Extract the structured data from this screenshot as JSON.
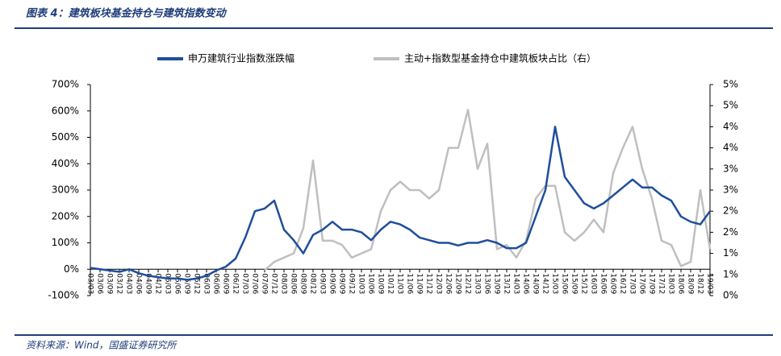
{
  "chart_data": {
    "type": "line",
    "title": "图表 4：建筑板块基金持仓与建筑指数变动",
    "source": "资料来源：Wind，国盛证券研究所",
    "categories": [
      "03/03",
      "03/06",
      "03/09",
      "03/12",
      "04/03",
      "04/06",
      "04/09",
      "04/12",
      "05/03",
      "05/06",
      "05/09",
      "05/12",
      "06/03",
      "06/06",
      "06/09",
      "06/12",
      "07/03",
      "07/06",
      "07/09",
      "07/12",
      "08/03",
      "08/06",
      "08/09",
      "08/12",
      "09/03",
      "09/06",
      "09/09",
      "09/12",
      "10/03",
      "10/06",
      "10/09",
      "10/12",
      "11/03",
      "11/06",
      "11/09",
      "11/12",
      "12/03",
      "12/06",
      "12/09",
      "12/12",
      "13/03",
      "13/06",
      "13/09",
      "13/12",
      "14/03",
      "14/06",
      "14/09",
      "14/12",
      "15/03",
      "15/06",
      "15/09",
      "15/12",
      "16/03",
      "16/06",
      "16/09",
      "16/12",
      "17/03",
      "17/06",
      "17/09",
      "17/12",
      "18/03",
      "18/06",
      "18/09",
      "18/12",
      "19/03"
    ],
    "series": [
      {
        "name": "申万建筑行业指数涨跌幅",
        "color": "#1f4e9c",
        "values": [
          5,
          0,
          -5,
          -10,
          0,
          -15,
          -25,
          -30,
          -35,
          -35,
          -40,
          -35,
          -25,
          -5,
          10,
          40,
          120,
          220,
          230,
          260,
          150,
          110,
          60,
          130,
          150,
          180,
          150,
          150,
          140,
          110,
          150,
          180,
          170,
          150,
          120,
          110,
          100,
          100,
          90,
          100,
          100,
          110,
          100,
          80,
          80,
          100,
          200,
          300,
          540,
          350,
          300,
          250,
          230,
          250,
          280,
          310,
          340,
          310,
          310,
          280,
          260,
          200,
          180,
          170,
          220
        ]
      },
      {
        "name": "主动+指数型基金持仓中建筑板块占比（右）",
        "color": "#bfbfbf",
        "axis": "y2",
        "values": [
          null,
          null,
          null,
          null,
          null,
          null,
          null,
          null,
          null,
          null,
          null,
          null,
          null,
          null,
          null,
          null,
          null,
          null,
          0.6,
          0.8,
          0.9,
          1.0,
          1.6,
          3.2,
          1.3,
          1.3,
          1.2,
          0.9,
          1.0,
          1.1,
          2.0,
          2.5,
          2.7,
          2.5,
          2.5,
          2.3,
          2.5,
          3.5,
          3.5,
          4.4,
          3.0,
          3.6,
          1.1,
          1.2,
          0.9,
          1.3,
          2.3,
          2.6,
          2.6,
          1.5,
          1.3,
          1.5,
          1.8,
          1.5,
          2.9,
          3.5,
          4.0,
          3.0,
          2.3,
          1.3,
          1.2,
          0.7,
          0.8,
          2.5,
          1.1
        ]
      }
    ],
    "ylim": [
      -100,
      700
    ],
    "yticks": [
      {
        "value": -100,
        "label": "-100%"
      },
      {
        "value": 0,
        "label": "0%"
      },
      {
        "value": 100,
        "label": "100%"
      },
      {
        "value": 200,
        "label": "200%"
      },
      {
        "value": 300,
        "label": "300%"
      },
      {
        "value": 400,
        "label": "400%"
      },
      {
        "value": 500,
        "label": "500%"
      },
      {
        "value": 600,
        "label": "600%"
      },
      {
        "value": 700,
        "label": "700%"
      }
    ],
    "y2lim": [
      0,
      5
    ],
    "y2ticks": [
      {
        "value": 0,
        "label": "0%"
      },
      {
        "value": 0.5,
        "label": "1%"
      },
      {
        "value": 1,
        "label": "1%"
      },
      {
        "value": 1.5,
        "label": "2%"
      },
      {
        "value": 2,
        "label": "2%"
      },
      {
        "value": 2.5,
        "label": "3%"
      },
      {
        "value": 3,
        "label": "3%"
      },
      {
        "value": 3.5,
        "label": "4%"
      },
      {
        "value": 4,
        "label": "4%"
      },
      {
        "value": 4.5,
        "label": "5%"
      },
      {
        "value": 5,
        "label": "5%"
      }
    ]
  }
}
